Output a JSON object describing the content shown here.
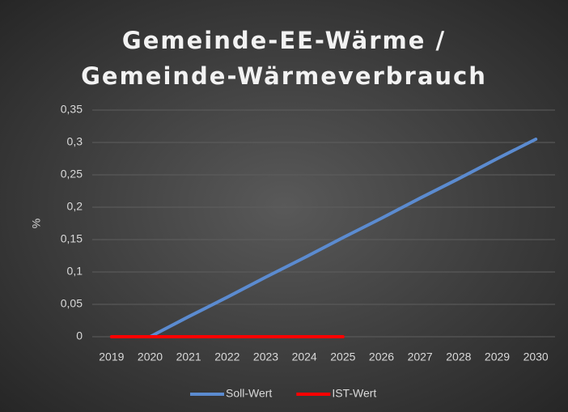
{
  "chart_data": {
    "type": "line",
    "title": "Gemeinde-EE-Wärme / Gemeinde-Wärmeverbrauch",
    "ylabel": "%",
    "categories": [
      "2019",
      "2020",
      "2021",
      "2022",
      "2023",
      "2024",
      "2025",
      "2026",
      "2027",
      "2028",
      "2029",
      "2030"
    ],
    "series": [
      {
        "name": "Soll-Wert",
        "color": "#5b8bd0",
        "values": [
          null,
          0,
          0.031,
          0.061,
          0.092,
          0.122,
          0.153,
          0.183,
          0.214,
          0.244,
          0.275,
          0.305
        ]
      },
      {
        "name": "IST-Wert",
        "color": "#ff0000",
        "values": [
          0,
          0,
          0,
          0,
          0,
          0,
          0,
          null,
          null,
          null,
          null,
          null
        ]
      }
    ],
    "ylim": [
      0,
      0.35
    ],
    "yticks": [
      0,
      {
        "value": 0.05,
        "label": "0,05"
      },
      {
        "value": 0.1,
        "label": "0,1"
      },
      {
        "value": 0.15,
        "label": "0,15"
      },
      {
        "value": 0.2,
        "label": "0,2"
      },
      {
        "value": 0.25,
        "label": "0,25"
      },
      {
        "value": 0.3,
        "label": "0,3"
      },
      {
        "value": 0.35,
        "label": "0,35"
      }
    ],
    "grid": true,
    "legend": "bottom"
  }
}
